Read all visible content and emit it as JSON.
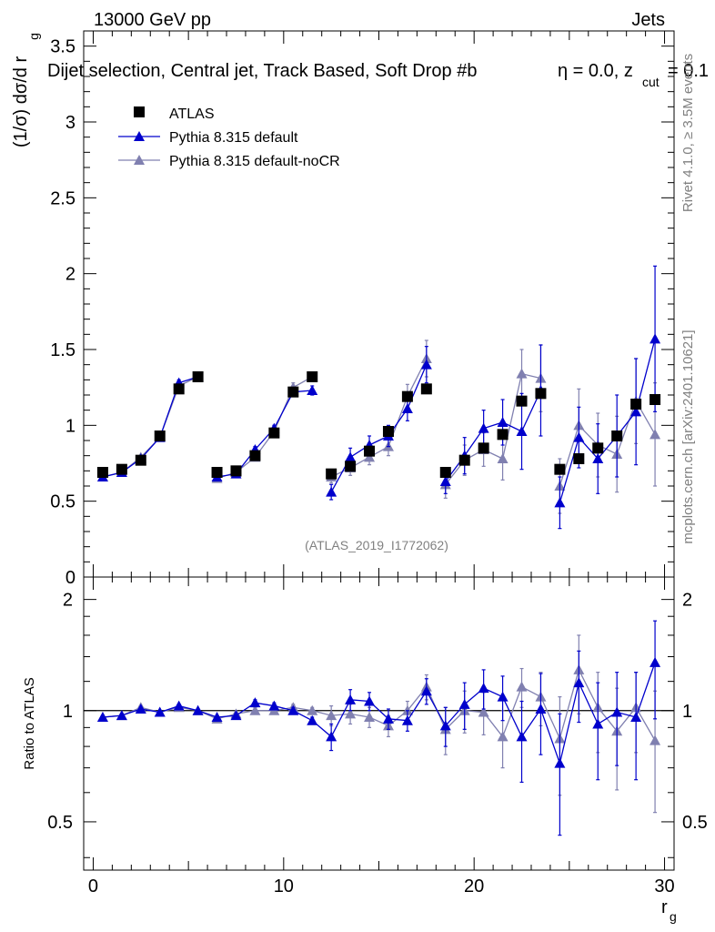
{
  "header": {
    "left": "13000 GeV pp",
    "right": "Jets",
    "title": "Dijet selection, Central jet, Track Based, Soft Drop #b",
    "title_eta": "η = 0.0, z",
    "title_sub": "cut",
    "title_tail": " = 0.1",
    "analysis": "(ATLAS_2019_I1772062)",
    "side_top": "Rivet 4.1.0, ≥ 3.5M events",
    "side_bottom": "mcplots.cern.ch [arXiv:2401.10621]"
  },
  "legend": [
    {
      "label": "ATLAS",
      "color": "#000000",
      "marker": "square"
    },
    {
      "label": "Pythia 8.315 default",
      "color": "#0000cc",
      "marker": "triangle"
    },
    {
      "label": "Pythia 8.315 default-noCR",
      "color": "#8080b0",
      "marker": "triangle"
    }
  ],
  "axes": {
    "ylabel_main": "(1/σ) dσ/d r",
    "ylabel_main_sub": "g",
    "ylabel_ratio": "Ratio to ATLAS",
    "xlabel": "r",
    "xlabel_sub": "g",
    "main_ticks": [
      "0",
      "0.5",
      "1",
      "1.5",
      "2",
      "2.5",
      "3",
      "3.5"
    ],
    "ratio_ticks": [
      "0.5",
      "1",
      "2"
    ],
    "x_ticks": [
      "0",
      "10",
      "20",
      "30"
    ]
  },
  "chart_data": {
    "type": "scatter",
    "xlim": [
      -0.5,
      30.5
    ],
    "ylim_main": [
      0,
      3.6
    ],
    "ylim_ratio": [
      0.37,
      2.3
    ],
    "x": [
      0.5,
      1.5,
      2.5,
      3.5,
      4.5,
      5.5,
      6.5,
      7.5,
      8.5,
      9.5,
      10.5,
      11.5,
      12.5,
      13.5,
      14.5,
      15.5,
      16.5,
      17.5,
      18.5,
      19.5,
      20.5,
      21.5,
      22.5,
      23.5,
      24.5,
      25.5,
      26.5,
      27.5,
      28.5,
      29.5
    ],
    "series": [
      {
        "name": "ATLAS",
        "values": [
          0.69,
          0.71,
          0.77,
          0.93,
          1.24,
          1.32,
          0.69,
          0.7,
          0.8,
          0.95,
          1.22,
          1.32,
          0.68,
          0.73,
          0.83,
          0.96,
          1.19,
          1.24,
          0.69,
          0.77,
          0.85,
          0.94,
          1.16,
          1.21,
          0.71,
          0.78,
          0.85,
          0.93,
          1.14,
          1.17
        ]
      },
      {
        "name": "Pythia 8.315 default",
        "values": [
          0.66,
          0.69,
          0.78,
          0.92,
          1.28,
          1.32,
          0.66,
          0.68,
          0.84,
          0.98,
          1.22,
          1.23,
          0.56,
          0.79,
          0.87,
          0.93,
          1.11,
          1.4,
          0.63,
          0.8,
          0.98,
          1.02,
          0.96,
          1.23,
          0.49,
          0.92,
          0.78,
          0.93,
          1.09,
          1.57
        ],
        "errors": [
          0.01,
          0.01,
          0.01,
          0.01,
          0.02,
          0.02,
          0.01,
          0.01,
          0.02,
          0.02,
          0.03,
          0.03,
          0.05,
          0.06,
          0.06,
          0.07,
          0.08,
          0.12,
          0.08,
          0.12,
          0.12,
          0.15,
          0.25,
          0.3,
          0.17,
          0.2,
          0.23,
          0.27,
          0.35,
          0.48
        ]
      },
      {
        "name": "Pythia 8.315 default-noCR",
        "values": [
          0.66,
          0.69,
          0.79,
          0.92,
          1.26,
          1.32,
          0.65,
          0.69,
          0.79,
          0.96,
          1.25,
          1.32,
          0.66,
          0.72,
          0.79,
          0.86,
          1.19,
          1.44,
          0.61,
          0.77,
          0.84,
          0.78,
          1.34,
          1.31,
          0.6,
          1.0,
          0.87,
          0.81,
          1.16,
          0.94
        ],
        "errors": [
          0.01,
          0.01,
          0.01,
          0.01,
          0.02,
          0.02,
          0.01,
          0.01,
          0.02,
          0.02,
          0.03,
          0.03,
          0.04,
          0.05,
          0.05,
          0.06,
          0.08,
          0.12,
          0.09,
          0.1,
          0.11,
          0.14,
          0.16,
          0.22,
          0.18,
          0.24,
          0.21,
          0.25,
          0.28,
          0.34
        ]
      }
    ],
    "ratio_series": [
      {
        "name": "Pythia 8.315 default",
        "values": [
          0.96,
          0.97,
          1.01,
          0.99,
          1.03,
          1.0,
          0.96,
          0.97,
          1.05,
          1.03,
          1.0,
          0.94,
          0.85,
          1.07,
          1.06,
          0.95,
          0.94,
          1.13,
          0.91,
          1.04,
          1.15,
          1.09,
          0.85,
          1.01,
          0.72,
          1.19,
          0.92,
          0.99,
          0.96,
          1.35
        ],
        "errors": [
          0.01,
          0.01,
          0.01,
          0.01,
          0.01,
          0.01,
          0.01,
          0.01,
          0.02,
          0.02,
          0.02,
          0.02,
          0.07,
          0.07,
          0.06,
          0.06,
          0.06,
          0.09,
          0.11,
          0.15,
          0.14,
          0.15,
          0.21,
          0.25,
          0.26,
          0.26,
          0.27,
          0.28,
          0.31,
          0.4
        ]
      },
      {
        "name": "Pythia 8.315 default-noCR",
        "values": [
          0.96,
          0.97,
          1.02,
          0.99,
          1.02,
          1.0,
          0.95,
          0.98,
          1.0,
          1.0,
          1.02,
          1.0,
          0.97,
          0.98,
          0.96,
          0.91,
          1.0,
          1.16,
          0.89,
          1.0,
          0.99,
          0.85,
          1.16,
          1.09,
          0.84,
          1.29,
          1.02,
          0.88,
          1.02,
          0.83
        ],
        "errors": [
          0.01,
          0.01,
          0.01,
          0.01,
          0.01,
          0.01,
          0.01,
          0.01,
          0.02,
          0.02,
          0.02,
          0.02,
          0.06,
          0.06,
          0.06,
          0.06,
          0.06,
          0.09,
          0.13,
          0.13,
          0.13,
          0.15,
          0.14,
          0.18,
          0.25,
          0.31,
          0.25,
          0.27,
          0.25,
          0.3
        ]
      }
    ]
  }
}
